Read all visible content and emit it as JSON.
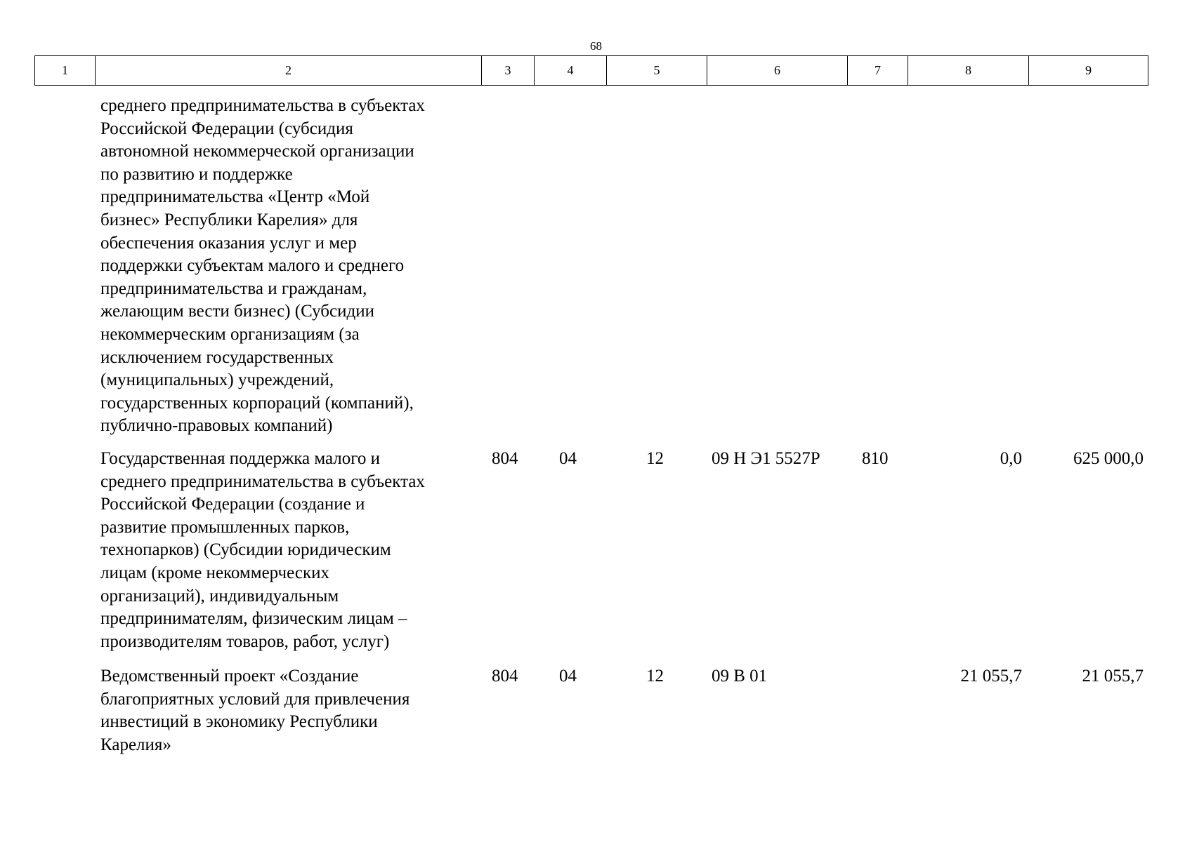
{
  "page_number": "68",
  "header_columns": [
    "1",
    "2",
    "3",
    "4",
    "5",
    "6",
    "7",
    "8",
    "9"
  ],
  "rows": [
    {
      "name_lines": [
        "среднего предпринимательства в субъектах",
        "Российской Федерации (субсидия",
        "автономной некоммерческой организации",
        "по развитию и поддержке",
        "предпринимательства «Центр «Мой",
        "бизнес» Республики Карелия» для",
        "обеспечения оказания услуг и мер",
        "поддержки субъектам малого и среднего",
        "предпринимательства и гражданам,",
        "желающим вести бизнес) (Субсидии",
        "некоммерческим организациям (за",
        "исключением государственных",
        "(муниципальных) учреждений,",
        "государственных корпораций (компаний),",
        "публично-правовых компаний)"
      ],
      "c3": "",
      "c4": "",
      "c5": "",
      "c6": "",
      "c7": "",
      "c8": "",
      "c9": ""
    },
    {
      "name_lines": [
        "Государственная поддержка малого и",
        "среднего предпринимательства в субъектах",
        "Российской Федерации (создание и",
        "развитие промышленных парков,",
        "технопарков) (Субсидии юридическим",
        "лицам (кроме некоммерческих",
        "организаций), индивидуальным",
        "предпринимателям, физическим лицам –",
        "производителям товаров, работ, услуг)"
      ],
      "c3": "804",
      "c4": "04",
      "c5": "12",
      "c6": "09 Н Э1 5527Р",
      "c7": "810",
      "c8": "0,0",
      "c9": "625 000,0"
    },
    {
      "name_lines": [
        "Ведомственный проект «Создание",
        "благоприятных условий для привлечения",
        "инвестиций в экономику Республики",
        "Карелия»"
      ],
      "c3": "804",
      "c4": "04",
      "c5": "12",
      "c6": "09 В 01",
      "c7": "",
      "c8": "21 055,7",
      "c9": "21 055,7"
    }
  ]
}
